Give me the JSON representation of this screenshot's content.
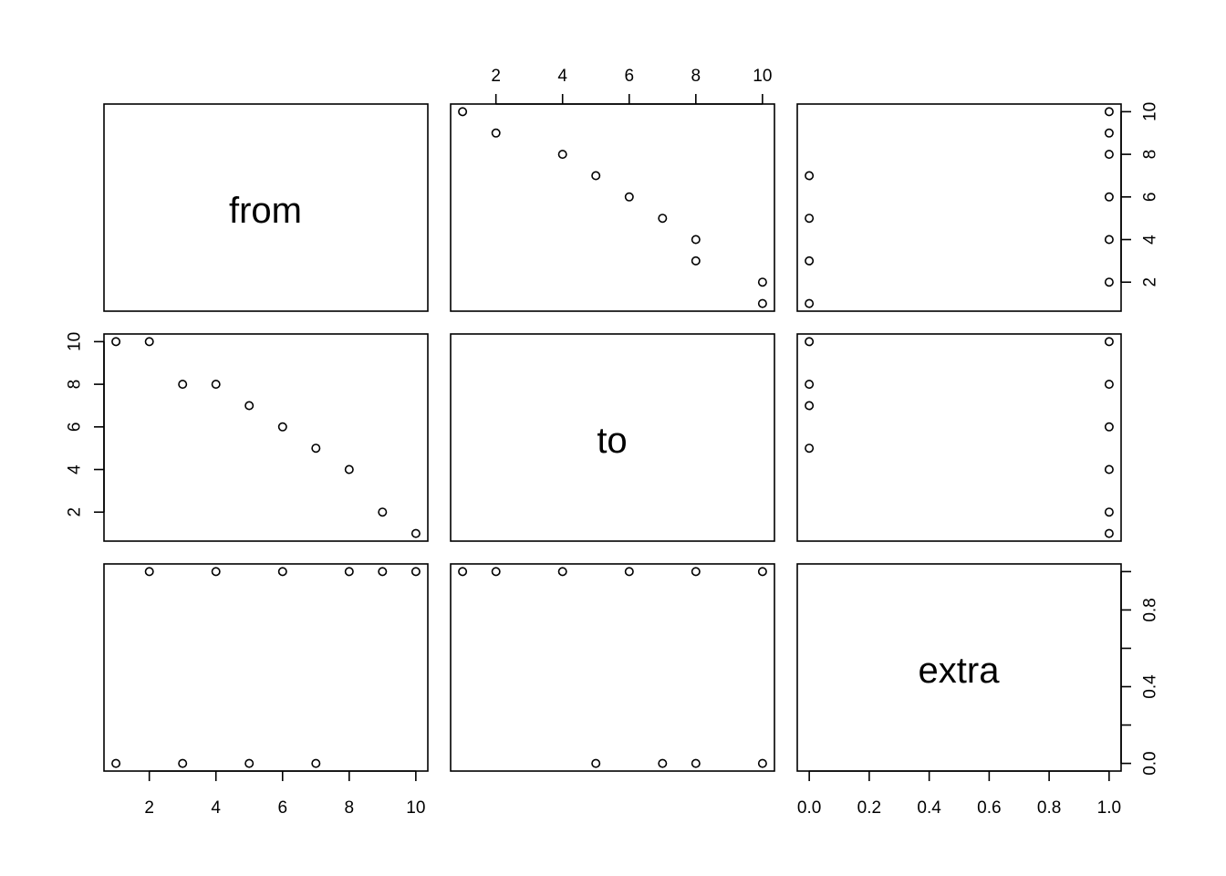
{
  "chart_data": {
    "type": "scatter",
    "subtype": "pairs-matrix",
    "variables": [
      "from",
      "to",
      "extra"
    ],
    "observations": [
      {
        "from": 1,
        "to": 10,
        "extra": 0
      },
      {
        "from": 2,
        "to": 10,
        "extra": 1
      },
      {
        "from": 3,
        "to": 8,
        "extra": 0
      },
      {
        "from": 4,
        "to": 8,
        "extra": 1
      },
      {
        "from": 5,
        "to": 7,
        "extra": 0
      },
      {
        "from": 6,
        "to": 6,
        "extra": 1
      },
      {
        "from": 7,
        "to": 5,
        "extra": 0
      },
      {
        "from": 8,
        "to": 4,
        "extra": 1
      },
      {
        "from": 9,
        "to": 2,
        "extra": 1
      },
      {
        "from": 10,
        "to": 1,
        "extra": 1
      }
    ],
    "axes": {
      "from": {
        "range": [
          0.64,
          10.36
        ],
        "ticks": [
          2,
          4,
          6,
          8,
          10
        ],
        "tick_labels": [
          "2",
          "4",
          "6",
          "8",
          "10"
        ]
      },
      "to": {
        "range": [
          0.64,
          10.36
        ],
        "ticks": [
          2,
          4,
          6,
          8,
          10
        ],
        "tick_labels": [
          "2",
          "4",
          "6",
          "8",
          "10"
        ]
      },
      "extra": {
        "range": [
          -0.04,
          1.04
        ],
        "ticks": [
          0,
          0.2,
          0.4,
          0.6,
          0.8,
          1.0
        ],
        "tick_labels": [
          "0.0",
          "0.2",
          "0.4",
          "0.6",
          "0.8",
          "1.0"
        ],
        "tick_labels_right": [
          "0.0",
          "",
          "0.4",
          "",
          "0.8",
          ""
        ]
      }
    },
    "grid": false,
    "legend": "none"
  }
}
